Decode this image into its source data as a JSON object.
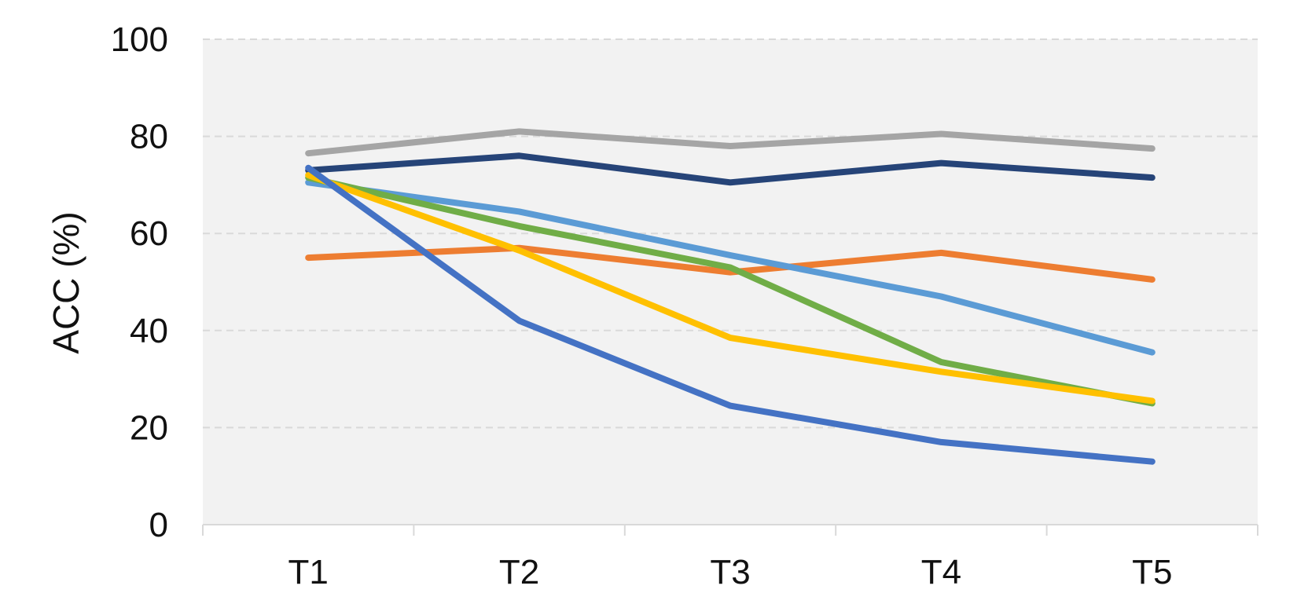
{
  "chart_data": {
    "type": "line",
    "title": "",
    "xlabel": "",
    "ylabel": "ACC (%)",
    "categories": [
      "T1",
      "T2",
      "T3",
      "T4",
      "T5"
    ],
    "ylim": [
      0,
      100
    ],
    "yticks": [
      0,
      20,
      40,
      60,
      80,
      100
    ],
    "grid": true,
    "legend": "none",
    "plot_background": "#f2f2f2",
    "gridline_color": "#d9d9d9",
    "axis_color": "#d9d9d9",
    "series": [
      {
        "color": "#a5a5a5",
        "values": [
          76.5,
          81.0,
          78.0,
          80.5,
          77.5
        ]
      },
      {
        "color": "#264478",
        "values": [
          73.0,
          76.0,
          70.5,
          74.5,
          71.5
        ]
      },
      {
        "color": "#ed7d31",
        "values": [
          55.0,
          57.0,
          52.0,
          56.0,
          50.5
        ]
      },
      {
        "color": "#5b9bd5",
        "values": [
          70.5,
          64.5,
          55.5,
          47.0,
          35.5
        ]
      },
      {
        "color": "#70ad47",
        "values": [
          71.5,
          61.5,
          53.0,
          33.5,
          25.0
        ]
      },
      {
        "color": "#ffc000",
        "values": [
          72.0,
          56.5,
          38.5,
          31.5,
          25.5
        ]
      },
      {
        "color": "#4472c4",
        "values": [
          73.5,
          42.0,
          24.5,
          17.0,
          13.0
        ]
      }
    ]
  }
}
